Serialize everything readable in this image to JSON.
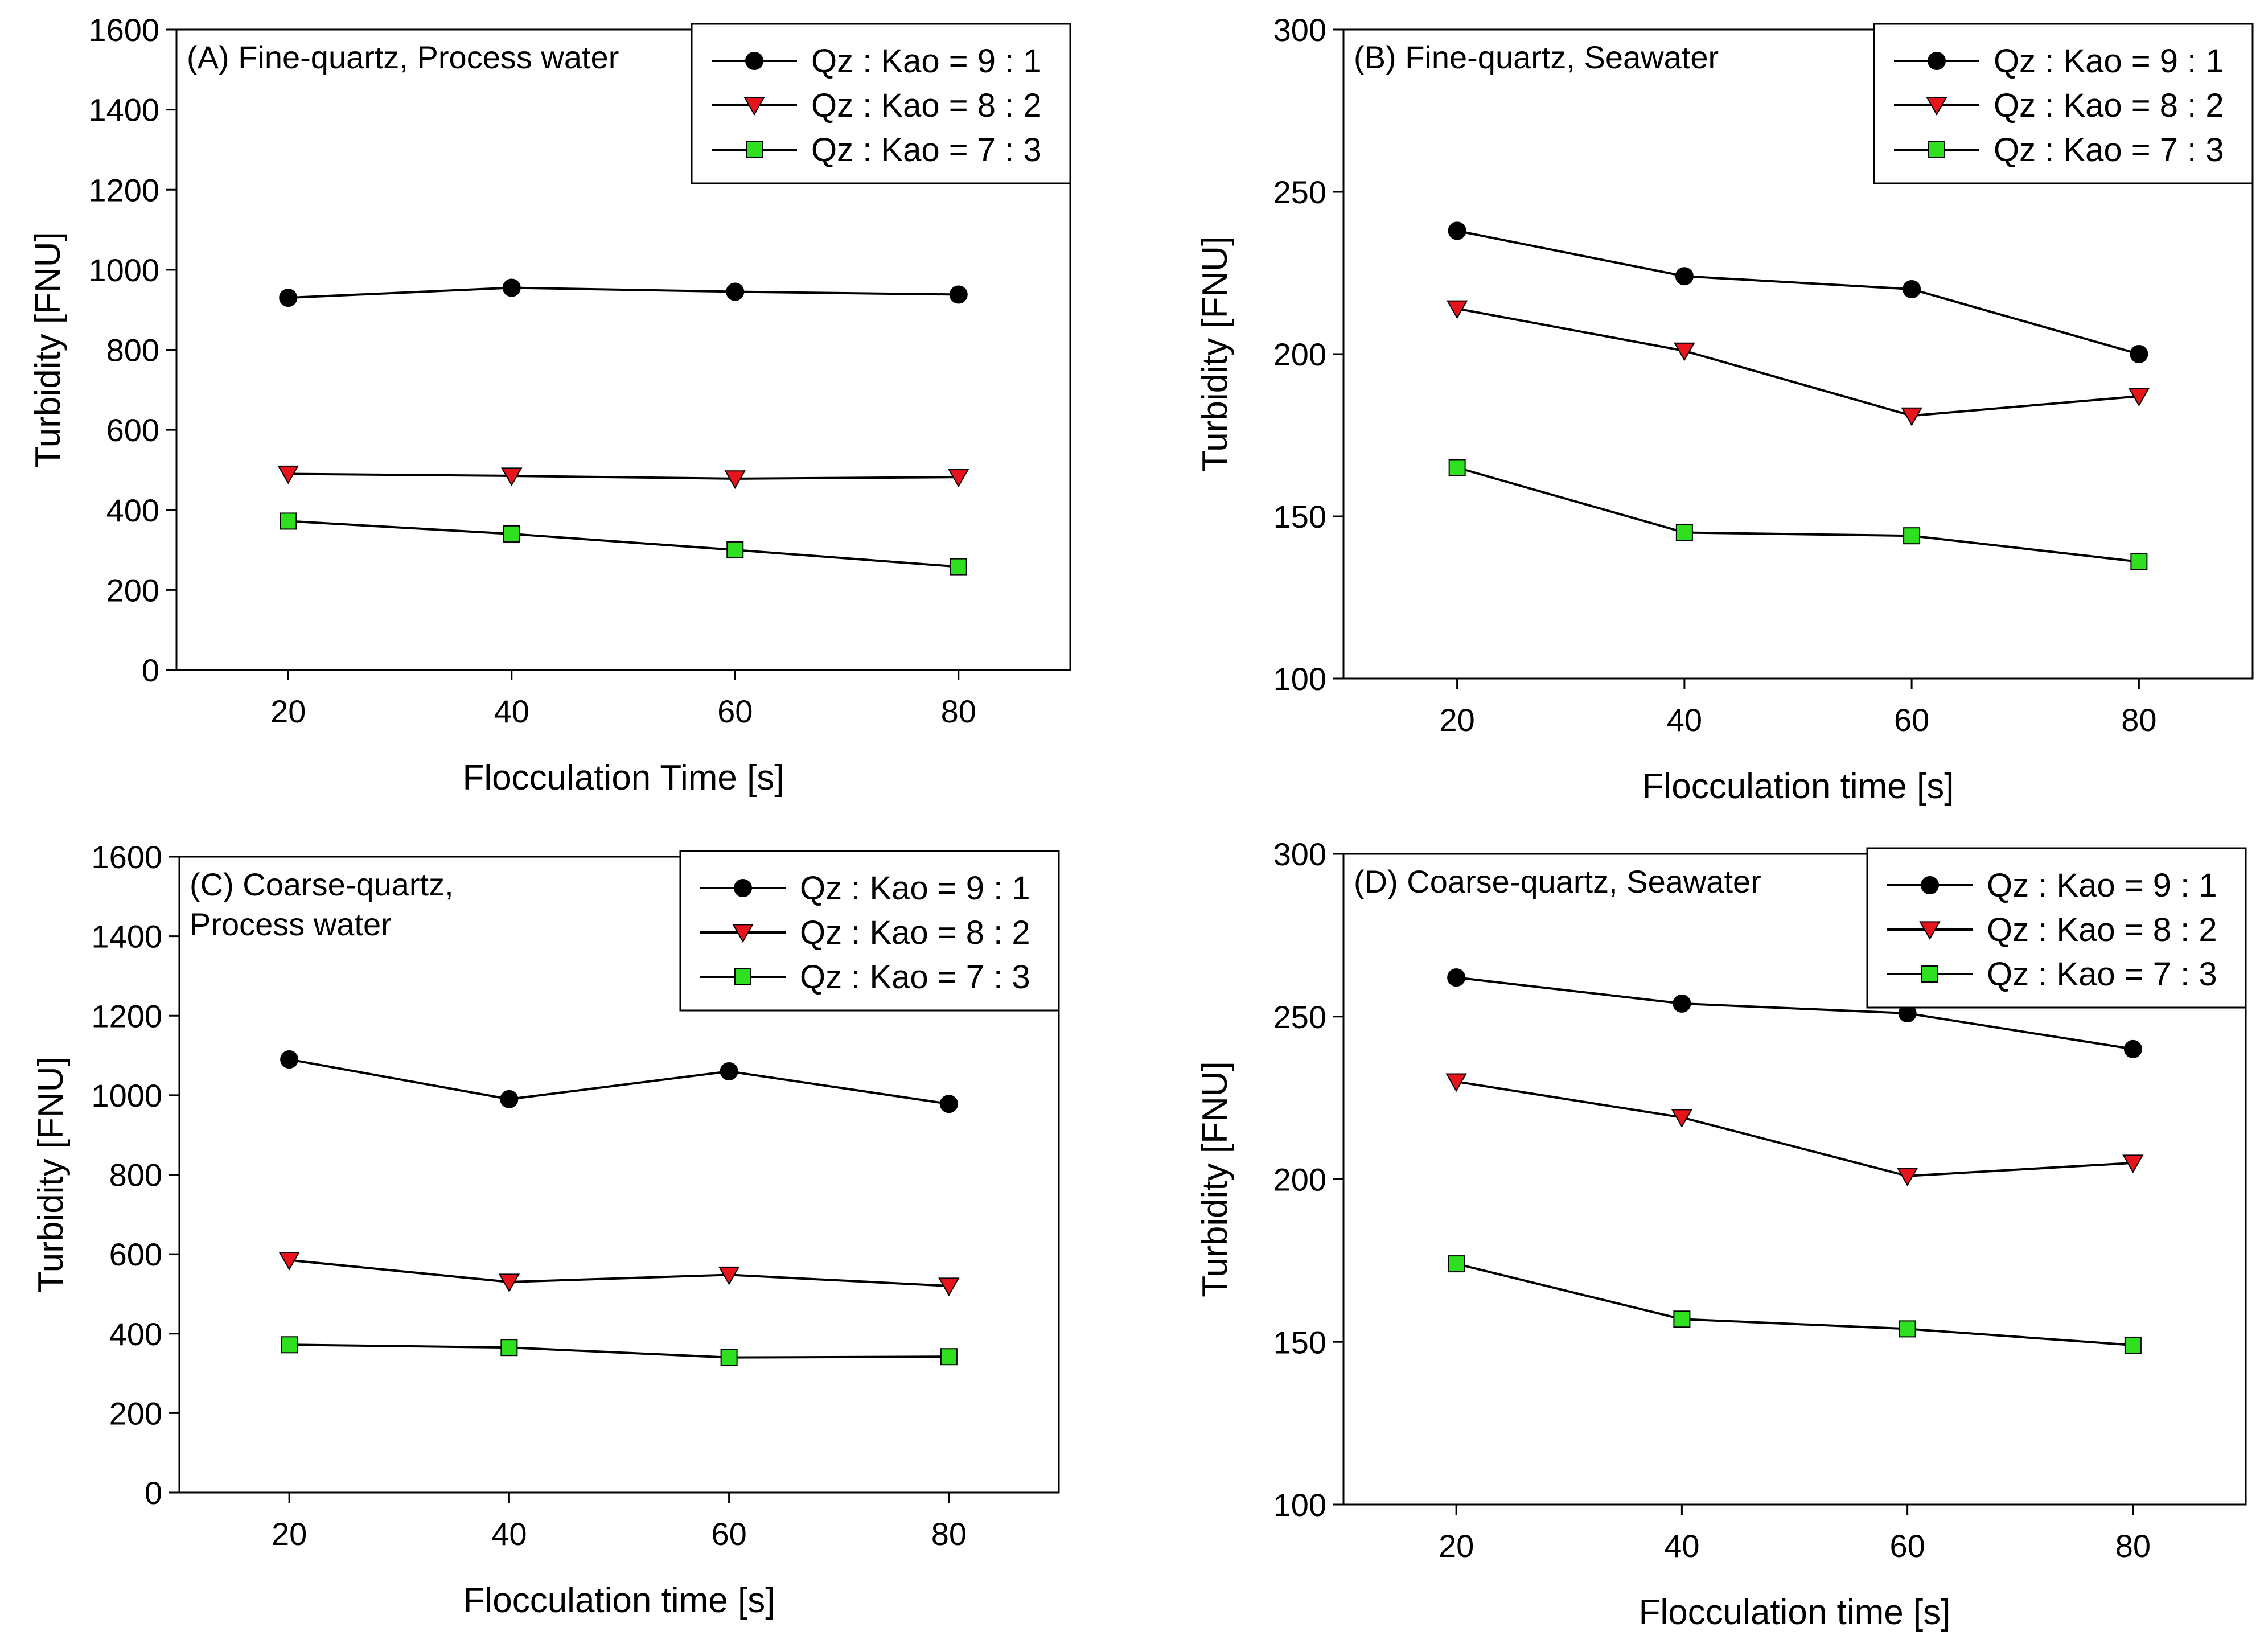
{
  "colors": {
    "series_9_1": "#000000",
    "series_8_2": "#e8141b",
    "series_7_3": "#2ee01f",
    "axis": "#000000",
    "background": "#ffffff"
  },
  "chart_data": [
    {
      "id": "A",
      "type": "line",
      "title": "(A) Fine-quartz, Process water",
      "title_lines": [
        "(A) Fine-quartz, Process water"
      ],
      "xlabel": "Flocculation Time [s]",
      "ylabel": "Turbidity [FNU]",
      "x": [
        20,
        40,
        60,
        80
      ],
      "xlim": [
        10,
        90
      ],
      "xticks": [
        "20",
        "40",
        "60",
        "80"
      ],
      "ylim": [
        0,
        1600
      ],
      "yticks": [
        "0",
        "200",
        "400",
        "600",
        "800",
        "1000",
        "1200",
        "1400",
        "1600"
      ],
      "grid": false,
      "legend_position": "top-right",
      "series": [
        {
          "name": "Qz : Kao = 9 : 1",
          "marker": "circle",
          "values": [
            930,
            955,
            945,
            938
          ]
        },
        {
          "name": "Qz : Kao = 8 : 2",
          "marker": "triangle-down",
          "values": [
            490,
            485,
            478,
            482
          ]
        },
        {
          "name": "Qz : Kao = 7 : 3",
          "marker": "square",
          "values": [
            372,
            340,
            300,
            258
          ]
        }
      ]
    },
    {
      "id": "B",
      "type": "line",
      "title": "(B) Fine-quartz, Seawater",
      "title_lines": [
        "(B) Fine-quartz, Seawater"
      ],
      "xlabel": "Flocculation time [s]",
      "ylabel": "Turbidity [FNU]",
      "x": [
        20,
        40,
        60,
        80
      ],
      "xlim": [
        10,
        90
      ],
      "xticks": [
        "20",
        "40",
        "60",
        "80"
      ],
      "ylim": [
        100,
        300
      ],
      "yticks": [
        "100",
        "150",
        "200",
        "250",
        "300"
      ],
      "grid": false,
      "legend_position": "top-right",
      "series": [
        {
          "name": "Qz : Kao = 9 : 1",
          "marker": "circle",
          "values": [
            238,
            224,
            220,
            200
          ]
        },
        {
          "name": "Qz : Kao = 8 : 2",
          "marker": "triangle-down",
          "values": [
            214,
            201,
            181,
            187
          ]
        },
        {
          "name": "Qz : Kao = 7 : 3",
          "marker": "square",
          "values": [
            165,
            145,
            144,
            136
          ]
        }
      ]
    },
    {
      "id": "C",
      "type": "line",
      "title": "(C) Coarse-quartz, Process water",
      "title_lines": [
        "(C) Coarse-quartz,",
        "Process water"
      ],
      "xlabel": "Flocculation time [s]",
      "ylabel": "Turbidity [FNU]",
      "x": [
        20,
        40,
        60,
        80
      ],
      "xlim": [
        10,
        90
      ],
      "xticks": [
        "20",
        "40",
        "60",
        "80"
      ],
      "ylim": [
        0,
        1600
      ],
      "yticks": [
        "0",
        "200",
        "400",
        "600",
        "800",
        "1000",
        "1200",
        "1400",
        "1600"
      ],
      "grid": false,
      "legend_position": "top-right",
      "series": [
        {
          "name": "Qz : Kao = 9 : 1",
          "marker": "circle",
          "values": [
            1090,
            990,
            1060,
            978
          ]
        },
        {
          "name": "Qz : Kao = 8 : 2",
          "marker": "triangle-down",
          "values": [
            585,
            530,
            548,
            520
          ]
        },
        {
          "name": "Qz : Kao = 7 : 3",
          "marker": "square",
          "values": [
            372,
            365,
            340,
            342
          ]
        }
      ]
    },
    {
      "id": "D",
      "type": "line",
      "title": "(D) Coarse-quartz, Seawater",
      "title_lines": [
        "(D) Coarse-quartz, Seawater"
      ],
      "xlabel": "Flocculation time [s]",
      "ylabel": "Turbidity [FNU]",
      "x": [
        20,
        40,
        60,
        80
      ],
      "xlim": [
        10,
        90
      ],
      "xticks": [
        "20",
        "40",
        "60",
        "80"
      ],
      "ylim": [
        100,
        300
      ],
      "yticks": [
        "100",
        "150",
        "200",
        "250",
        "300"
      ],
      "grid": false,
      "legend_position": "top-right",
      "series": [
        {
          "name": "Qz : Kao = 9 : 1",
          "marker": "circle",
          "values": [
            262,
            254,
            251,
            240
          ]
        },
        {
          "name": "Qz : Kao = 8 : 2",
          "marker": "triangle-down",
          "values": [
            230,
            219,
            201,
            205
          ]
        },
        {
          "name": "Qz : Kao = 7 : 3",
          "marker": "square",
          "values": [
            174,
            157,
            154,
            149
          ]
        }
      ]
    }
  ]
}
